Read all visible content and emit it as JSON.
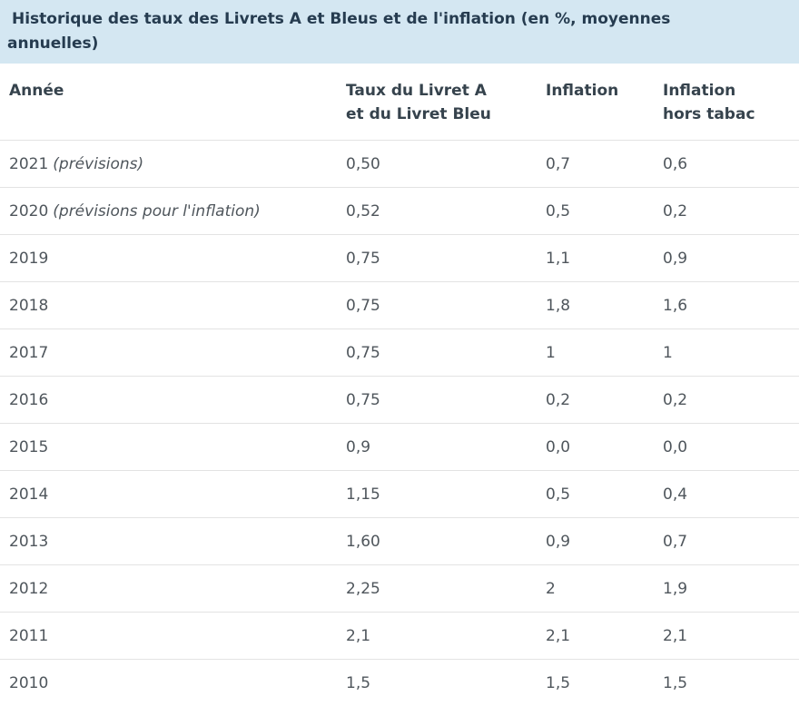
{
  "title": {
    "line1": "Historique des taux des Livrets A et Bleus et de l'inflation (en %, moyennes",
    "line2": "annuelles)",
    "full": "Historique des taux des Livrets A et Bleus et de l'inflation (en %, moyennes annuelles)"
  },
  "colors": {
    "title_bar_bg": "#d4e7f2",
    "title_text": "#263c50",
    "header_text": "#36434d",
    "body_text": "#4f565c",
    "row_border": "#e3e3e3"
  },
  "table": {
    "columns": [
      {
        "line1": "Année",
        "line2": ""
      },
      {
        "line1": "Taux du Livret A",
        "line2": "et du Livret Bleu"
      },
      {
        "line1": "Inflation",
        "line2": ""
      },
      {
        "line1": "Inflation",
        "line2": "hors tabac"
      }
    ],
    "rows": [
      {
        "year": "2021",
        "note": "(prévisions)",
        "taux": "0,50",
        "inflation": "0,7",
        "inflation_hors_tabac": "0,6"
      },
      {
        "year": "2020",
        "note": "(prévisions pour l'inflation)",
        "taux": "0,52",
        "inflation": "0,5",
        "inflation_hors_tabac": "0,2"
      },
      {
        "year": "2019",
        "note": "",
        "taux": "0,75",
        "inflation": "1,1",
        "inflation_hors_tabac": "0,9"
      },
      {
        "year": "2018",
        "note": "",
        "taux": "0,75",
        "inflation": "1,8",
        "inflation_hors_tabac": "1,6"
      },
      {
        "year": "2017",
        "note": "",
        "taux": "0,75",
        "inflation": "1",
        "inflation_hors_tabac": "1"
      },
      {
        "year": "2016",
        "note": "",
        "taux": "0,75",
        "inflation": "0,2",
        "inflation_hors_tabac": "0,2"
      },
      {
        "year": "2015",
        "note": "",
        "taux": "0,9",
        "inflation": "0,0",
        "inflation_hors_tabac": "0,0"
      },
      {
        "year": "2014",
        "note": "",
        "taux": "1,15",
        "inflation": "0,5",
        "inflation_hors_tabac": "0,4"
      },
      {
        "year": "2013",
        "note": "",
        "taux": "1,60",
        "inflation": "0,9",
        "inflation_hors_tabac": "0,7"
      },
      {
        "year": "2012",
        "note": "",
        "taux": "2,25",
        "inflation": "2",
        "inflation_hors_tabac": "1,9"
      },
      {
        "year": "2011",
        "note": "",
        "taux": "2,1",
        "inflation": "2,1",
        "inflation_hors_tabac": "2,1"
      },
      {
        "year": "2010",
        "note": "",
        "taux": "1,5",
        "inflation": "1,5",
        "inflation_hors_tabac": "1,5"
      }
    ]
  },
  "chart_data": {
    "type": "table",
    "title": "Historique des taux des Livrets A et Bleus et de l'inflation (en %, moyennes annuelles)",
    "columns": [
      "Année",
      "Taux du Livret A et du Livret Bleu",
      "Inflation",
      "Inflation hors tabac"
    ],
    "rows": [
      [
        "2021 (prévisions)",
        "0,50",
        "0,7",
        "0,6"
      ],
      [
        "2020 (prévisions pour l'inflation)",
        "0,52",
        "0,5",
        "0,2"
      ],
      [
        "2019",
        "0,75",
        "1,1",
        "0,9"
      ],
      [
        "2018",
        "0,75",
        "1,8",
        "1,6"
      ],
      [
        "2017",
        "0,75",
        "1",
        "1"
      ],
      [
        "2016",
        "0,75",
        "0,2",
        "0,2"
      ],
      [
        "2015",
        "0,9",
        "0,0",
        "0,0"
      ],
      [
        "2014",
        "1,15",
        "0,5",
        "0,4"
      ],
      [
        "2013",
        "1,60",
        "0,9",
        "0,7"
      ],
      [
        "2012",
        "2,25",
        "2",
        "1,9"
      ],
      [
        "2011",
        "2,1",
        "2,1",
        "2,1"
      ],
      [
        "2010",
        "1,5",
        "1,5",
        "1,5"
      ]
    ]
  }
}
